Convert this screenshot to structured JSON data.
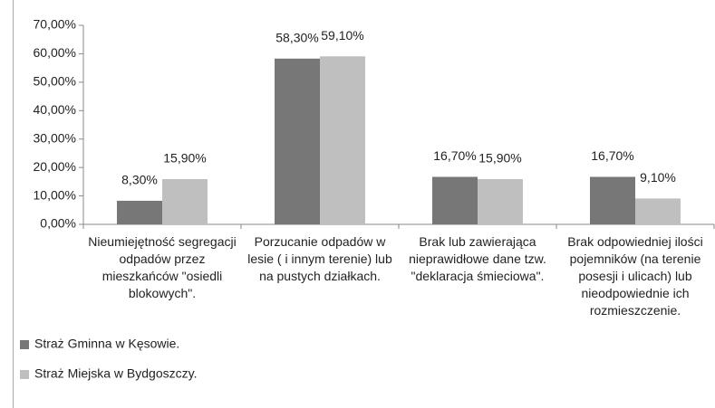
{
  "chart_data": {
    "type": "bar",
    "categories": [
      "Nieumiejętność segregacji odpadów przez mieszkańców \"osiedli blokowych\".",
      "Porzucanie odpadów w lesie ( i innym terenie) lub na pustych działkach.",
      "Brak lub zawierająca nieprawidłowe dane tzw. \"deklaracja śmieciowa\".",
      "Brak odpowiedniej ilości pojemników (na terenie posesji i ulicach) lub nieodpowiednie ich rozmieszczenie."
    ],
    "series": [
      {
        "name": "Straż Gminna w Kęsowie.",
        "color": "#777777",
        "values": [
          8.3,
          58.3,
          16.7,
          16.7
        ],
        "value_labels": [
          "8,30%",
          "58,30%",
          "16,70%",
          "16,70%"
        ]
      },
      {
        "name": "Straż Miejska w Bydgoszczy.",
        "color": "#bfbfbf",
        "values": [
          15.9,
          59.1,
          15.9,
          9.1
        ],
        "value_labels": [
          "15,90%",
          "59,10%",
          "15,90%",
          "9,10%"
        ]
      }
    ],
    "ylim": [
      0,
      70
    ],
    "yticks": [
      {
        "value": 0,
        "label": "0,00%"
      },
      {
        "value": 10,
        "label": "10,00%"
      },
      {
        "value": 20,
        "label": "20,00%"
      },
      {
        "value": 30,
        "label": "30,00%"
      },
      {
        "value": 40,
        "label": "40,00%"
      },
      {
        "value": 50,
        "label": "50,00%"
      },
      {
        "value": 60,
        "label": "60,00%"
      },
      {
        "value": 70,
        "label": "70,00%"
      }
    ],
    "legend": "bottom-left"
  }
}
